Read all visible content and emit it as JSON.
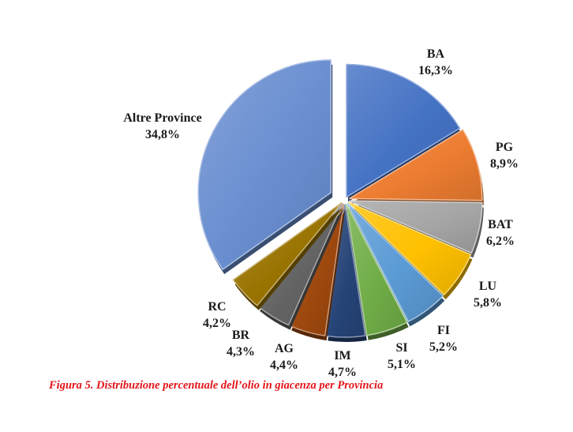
{
  "chart_data": {
    "type": "pie",
    "categories": [
      "BA",
      "PG",
      "BAT",
      "LU",
      "FI",
      "SI",
      "IM",
      "AG",
      "BR",
      "RC",
      "Altre Province"
    ],
    "values": [
      16.3,
      8.9,
      6.2,
      5.8,
      5.2,
      5.1,
      4.7,
      4.4,
      4.3,
      4.2,
      34.8
    ],
    "value_labels": [
      "16,3%",
      "8,9%",
      "6,2%",
      "5,8%",
      "5,2%",
      "5,1%",
      "4,7%",
      "4,4%",
      "4,3%",
      "4,2%",
      "34,8%"
    ],
    "colors": [
      "#4472c4",
      "#ed7d31",
      "#a5a5a5",
      "#ffc000",
      "#5b9bd5",
      "#70ad47",
      "#264478",
      "#9e480e",
      "#636363",
      "#997300",
      "#698ed0"
    ],
    "exploded": true,
    "style": "3d-bevel",
    "legend": "none",
    "caption": "Figura 5. Distribuzione percentuale dell’olio in giacenza per Provincia"
  },
  "caption_color": "#e3151a"
}
